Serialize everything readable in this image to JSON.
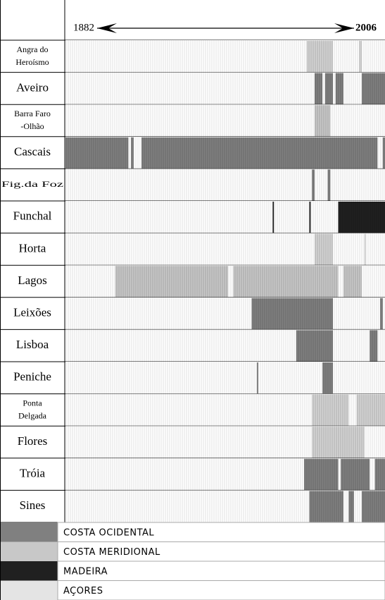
{
  "chart_data": {
    "type": "timeline",
    "xlim": [
      1882,
      2006
    ],
    "xticks": [
      1882,
      2006
    ],
    "series": [
      {
        "name": "Angra do Heroísmo",
        "color": "#d4d4d4",
        "periods": [
          [
            1974,
            1984
          ],
          [
            1994,
            1995
          ]
        ]
      },
      {
        "name": "Aveiro",
        "color": "#808080",
        "periods": [
          [
            1977,
            1980
          ],
          [
            1981,
            1984
          ],
          [
            1985,
            1988
          ],
          [
            1995,
            2006
          ]
        ]
      },
      {
        "name": "Barra Faro -Olhão",
        "color": "#c8c8c8",
        "periods": [
          [
            1977,
            1983
          ]
        ]
      },
      {
        "name": "Cascais",
        "color": "#808080",
        "periods": [
          [
            1882,
            1906
          ],
          [
            1907,
            1908
          ],
          [
            1911,
            2001
          ],
          [
            2003,
            2006
          ]
        ]
      },
      {
        "name": "Fig.da Foz",
        "color": "#808080",
        "periods": [
          [
            1976,
            1977
          ],
          [
            1982,
            1983
          ]
        ]
      },
      {
        "name": "Funchal",
        "color": "#202020",
        "periods": [
          [
            1961,
            1961.5
          ],
          [
            1975,
            1975.5
          ],
          [
            1986,
            2006
          ]
        ]
      },
      {
        "name": "Horta",
        "color": "#d4d4d4",
        "periods": [
          [
            1977,
            1984
          ],
          [
            1996,
            1996.5
          ]
        ]
      },
      {
        "name": "Lagos",
        "color": "#c8c8c8",
        "periods": [
          [
            1901,
            1944
          ],
          [
            1946,
            1986
          ],
          [
            1988,
            1995
          ]
        ]
      },
      {
        "name": "Leixões",
        "color": "#808080",
        "periods": [
          [
            1953,
            1984
          ],
          [
            2002,
            2003
          ]
        ]
      },
      {
        "name": "Lisboa",
        "color": "#808080",
        "periods": [
          [
            1970,
            1984
          ],
          [
            1998,
            2001
          ]
        ]
      },
      {
        "name": "Peniche",
        "color": "#808080",
        "periods": [
          [
            1955,
            1955.5
          ],
          [
            1980,
            1984
          ]
        ]
      },
      {
        "name": "Ponta Delgada",
        "color": "#d4d4d4",
        "periods": [
          [
            1976,
            1990
          ],
          [
            1993,
            2006
          ]
        ]
      },
      {
        "name": "Flores",
        "color": "#d4d4d4",
        "periods": [
          [
            1976,
            1996
          ]
        ]
      },
      {
        "name": "Tróia",
        "color": "#808080",
        "periods": [
          [
            1973,
            1986
          ],
          [
            1987,
            1998
          ],
          [
            2000,
            2006
          ]
        ]
      },
      {
        "name": "Sines",
        "color": "#808080",
        "periods": [
          [
            1975,
            1988
          ],
          [
            1990,
            1992
          ],
          [
            1995,
            2006
          ]
        ]
      }
    ],
    "legend": [
      {
        "name": "COSTA OCIDENTAL",
        "color": "#808080"
      },
      {
        "name": "COSTA MERIDIONAL",
        "color": "#c8c8c8"
      },
      {
        "name": "MADEIRA",
        "color": "#202020"
      },
      {
        "name": "AÇORES",
        "color": "#e4e4e4"
      }
    ]
  }
}
